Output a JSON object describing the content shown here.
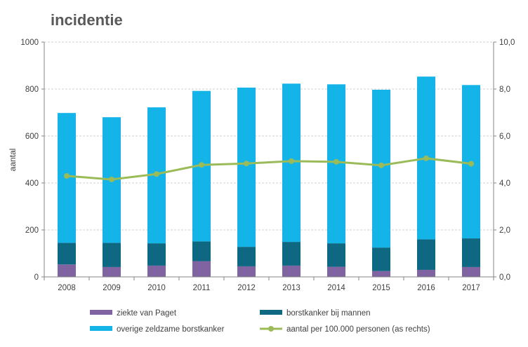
{
  "chart_data": {
    "type": "bar",
    "title": "incidentie",
    "ylabel": "aantal",
    "ylabel_right": "",
    "ylim": [
      0,
      1000
    ],
    "y2lim": [
      0,
      10
    ],
    "yticks": [
      "0",
      "200",
      "400",
      "600",
      "800",
      "1000"
    ],
    "y2ticks": [
      "0,0",
      "2,0",
      "4,0",
      "6,0",
      "8,0",
      "10,0"
    ],
    "grid": true,
    "legend_position": "bottom",
    "categories": [
      "2008",
      "2009",
      "2010",
      "2011",
      "2012",
      "2013",
      "2014",
      "2015",
      "2016",
      "2017"
    ],
    "series": [
      {
        "name": "ziekte van Paget",
        "type": "bar",
        "stack": "a",
        "color": "#8064A2",
        "values": [
          53,
          42,
          48,
          67,
          45,
          48,
          43,
          25,
          30,
          42
        ]
      },
      {
        "name": "borstkanker bij mannen",
        "type": "bar",
        "stack": "a",
        "color": "#0E6881",
        "values": [
          92,
          103,
          95,
          84,
          83,
          101,
          100,
          100,
          130,
          122
        ]
      },
      {
        "name": "overige zeldzame borstkanker",
        "type": "bar",
        "stack": "a",
        "color": "#14B4E8",
        "values": [
          553,
          535,
          579,
          641,
          678,
          674,
          677,
          672,
          693,
          653
        ]
      },
      {
        "name": "aantal per 100.000 personen (as rechts)",
        "type": "line",
        "axis": "right",
        "color": "#9BBB59",
        "values": [
          4.3,
          4.15,
          4.38,
          4.77,
          4.83,
          4.93,
          4.9,
          4.75,
          5.05,
          4.82
        ]
      }
    ]
  }
}
